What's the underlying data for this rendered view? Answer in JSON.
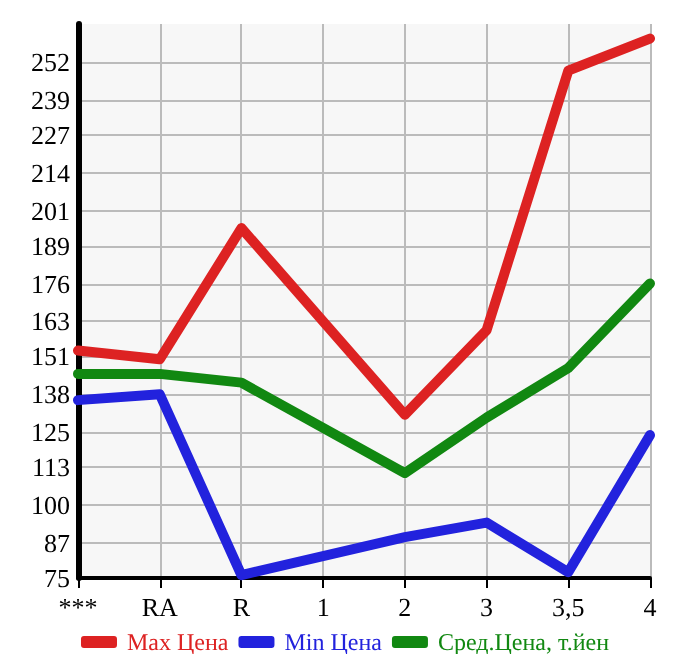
{
  "chart_data": {
    "type": "line",
    "categories": [
      "***",
      "RA",
      "R",
      "1",
      "2",
      "3",
      "3,5",
      "4"
    ],
    "series": [
      {
        "name": "Max Цена",
        "color": "#dd2222",
        "values": [
          153,
          150,
          195,
          null,
          131,
          160,
          249,
          260
        ]
      },
      {
        "name": "Min Цена",
        "color": "#2222dd",
        "values": [
          136,
          138,
          76,
          null,
          89,
          94,
          77,
          124
        ]
      },
      {
        "name": "Сред.Цена, т.йен",
        "color": "#118811",
        "values": [
          145,
          145,
          142,
          null,
          111,
          130,
          147,
          176
        ]
      }
    ],
    "ylim": [
      75,
      265
    ],
    "yticks": [
      75,
      87,
      100,
      113,
      125,
      138,
      151,
      163,
      176,
      189,
      201,
      214,
      227,
      239,
      252
    ],
    "grid": true,
    "legend": "bottom",
    "marker": "none",
    "line_style": "solid"
  }
}
